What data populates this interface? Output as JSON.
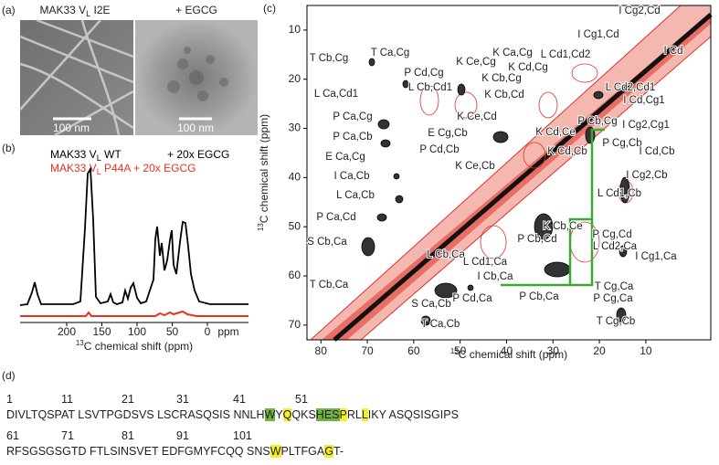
{
  "panel_a": {
    "label": "(a)",
    "left_title": [
      "MAK33 V",
      "L",
      " I2E"
    ],
    "right_title": "+ EGCG",
    "scale_left": "100 nm",
    "scale_right": "100 nm"
  },
  "panel_b": {
    "label": "(b)",
    "legend": [
      {
        "parts": [
          "MAK33 V",
          "L",
          " WT"
        ],
        "suffix": "+ 20x EGCG",
        "color": "#000000"
      },
      {
        "parts": [
          "MAK33 V",
          "L",
          " P44A + 20x EGCG"
        ],
        "color": "#e8321e"
      }
    ],
    "xticks": [
      200,
      150,
      100,
      50,
      0
    ],
    "xunit": "ppm",
    "xlabel_sup": "13",
    "xlabel": "C chemical shift (ppm)"
  },
  "panel_c": {
    "label": "(c)",
    "xlim": [
      83,
      -4
    ],
    "ylim": [
      5,
      73
    ],
    "xticks": [
      80,
      70,
      60,
      50,
      40,
      30,
      20,
      10
    ],
    "yticks": [
      10,
      20,
      30,
      40,
      50,
      60,
      70
    ],
    "xlabel_sup": "13",
    "xlabel": "C chemical shift (ppm)",
    "ylabel_sup": "13",
    "ylabel": "C chemical shift (ppm)",
    "annotations": [
      "I Cg2,Cd",
      "I Cg1,Cd",
      "I Cd",
      "T Cb,Cg",
      "T Ca,Cg",
      "P Cd,Cg",
      "K Ce,Cg",
      "K Ca,Cg",
      "L Cd1,Cd2",
      "K Cd,Cg",
      "K Cb,Cg",
      "L Cb,Cd1",
      "L Cd2,Cd1",
      "L Ca,Cd1",
      "K Cb,Cd",
      "I Cd,Cg1",
      "K Ce,Cd",
      "P Ca,Cg",
      "I Cg2,Cg1",
      "P Cb,Cg",
      "E Cg,Cb",
      "P Ca,Cb",
      "P Cd,Cb",
      "P Cg,Cb",
      "I Cd,Cb",
      "E Ca,Cg",
      "K Cd,Cb",
      "K Cd,Ce",
      "I Ca,Cb",
      "K Ce,Cb",
      "I Cg2,Cb",
      "L Ca,Cb",
      "L Cd1,Cb",
      "K Cb,Ce",
      "P Ca,Cd",
      "P Cb,Cd",
      "P Cg,Cd",
      "L Cd2,Ca",
      "S Cb,Ca",
      "L Cb,Ca",
      "L Cd1,Ca",
      "I Cg1,Ca",
      "I Cb,Ca",
      "T Cb,Ca",
      "P Cd,Ca",
      "P Cb,Ca",
      "P Cg,Ca",
      "T Cg,Ca",
      "S Ca,Cb",
      "T Ca,Cb",
      "T Cg,Cb"
    ]
  },
  "panel_d": {
    "label": "(d)",
    "rows": [
      {
        "numbers": [
          1,
          11,
          21,
          31,
          41,
          51
        ],
        "segments": [
          {
            "text": "DIVLTQSPAT LSVTPGDSVS LSCRASQSIS NNLH"
          },
          {
            "text": "W",
            "highlight": "#6db33f"
          },
          {
            "text": "Y"
          },
          {
            "text": "Q",
            "highlight": "#f7ee2a"
          },
          {
            "text": "QKS"
          },
          {
            "text": "HES",
            "highlight": "#6db33f"
          },
          {
            "text": "P",
            "highlight": "#f7ee2a"
          },
          {
            "text": "RL"
          },
          {
            "text": "L",
            "highlight": "#f7ee2a"
          },
          {
            "text": "IKY ASQSISGIPS"
          }
        ]
      },
      {
        "numbers": [
          61,
          71,
          81,
          91,
          101
        ],
        "segments": [
          {
            "text": "RFSGSGSGTD FTLSINSVET EDFGMYFCQQ SNS"
          },
          {
            "text": "W",
            "highlight": "#f7ee2a"
          },
          {
            "text": "PLTFGA"
          },
          {
            "text": "G",
            "highlight": "#f7ee2a"
          },
          {
            "text": "T-"
          }
        ]
      }
    ]
  }
}
